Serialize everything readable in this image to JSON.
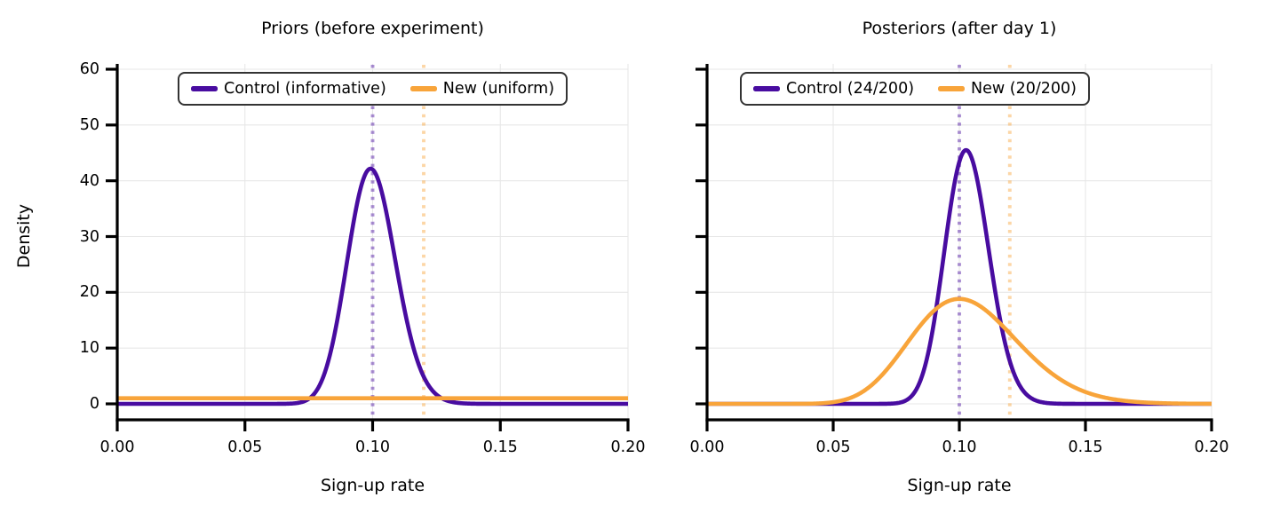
{
  "figure": {
    "background": "#ffffff",
    "text_color": "#000000",
    "grid_color": "#e7e7e7",
    "spine_color": "#000000",
    "legend_border_color": "#333333"
  },
  "chart_data": [
    {
      "type": "line",
      "title": "Priors (before experiment)",
      "xlabel": "Sign-up rate",
      "ylabel": "Density",
      "xlim": [
        0.0,
        0.2
      ],
      "ylim": [
        0,
        60
      ],
      "grid": true,
      "legend_position": "upper center",
      "xtick_values": [
        0.0,
        0.05,
        0.1,
        0.15,
        0.2
      ],
      "xtick_labels": [
        "0.00",
        "0.05",
        "0.10",
        "0.15",
        "0.20"
      ],
      "ytick_values": [
        0,
        10,
        20,
        30,
        40,
        50,
        60
      ],
      "ytick_labels": [
        "0",
        "10",
        "20",
        "30",
        "40",
        "50",
        "60"
      ],
      "show_ytick_labels": true,
      "series": [
        {
          "name": "Control (informative)",
          "color": "#480CA0",
          "line_width": 4.6,
          "distribution": {
            "kind": "beta",
            "alpha": 100,
            "beta": 900
          },
          "peak": {
            "x": 0.1,
            "y": 42.1
          }
        },
        {
          "name": "New (uniform)",
          "color": "#F8A43A",
          "line_width": 4.6,
          "distribution": {
            "kind": "uniform",
            "density": 1.0
          },
          "peak": {
            "x": null,
            "y": 1.0
          }
        }
      ],
      "vlines": [
        {
          "x": 0.1,
          "color": "#480CA0",
          "opacity": 0.45,
          "style": "dotted"
        },
        {
          "x": 0.12,
          "color": "#F8A43A",
          "opacity": 0.45,
          "style": "dotted"
        }
      ]
    },
    {
      "type": "line",
      "title": "Posteriors (after day 1)",
      "xlabel": "Sign-up rate",
      "ylabel": "Density",
      "xlim": [
        0.0,
        0.2
      ],
      "ylim": [
        0,
        60
      ],
      "grid": true,
      "legend_position": "upper center",
      "xtick_values": [
        0.0,
        0.05,
        0.1,
        0.15,
        0.2
      ],
      "xtick_labels": [
        "0.00",
        "0.05",
        "0.10",
        "0.15",
        "0.20"
      ],
      "ytick_values": [
        0,
        10,
        20,
        30,
        40,
        50,
        60
      ],
      "ytick_labels": [
        "",
        "",
        "",
        "",
        "",
        "",
        ""
      ],
      "show_ytick_labels": false,
      "series": [
        {
          "name": "Control (24/200)",
          "color": "#480CA0",
          "line_width": 4.6,
          "distribution": {
            "kind": "beta",
            "alpha": 124,
            "beta": 1076
          },
          "peak": {
            "x": 0.103,
            "y": 45.4
          }
        },
        {
          "name": "New (20/200)",
          "color": "#F8A43A",
          "line_width": 4.6,
          "distribution": {
            "kind": "beta",
            "alpha": 21,
            "beta": 181
          },
          "peak": {
            "x": 0.1,
            "y": 18.6
          }
        }
      ],
      "vlines": [
        {
          "x": 0.1,
          "color": "#480CA0",
          "opacity": 0.45,
          "style": "dotted"
        },
        {
          "x": 0.12,
          "color": "#F8A43A",
          "opacity": 0.45,
          "style": "dotted"
        }
      ]
    }
  ]
}
